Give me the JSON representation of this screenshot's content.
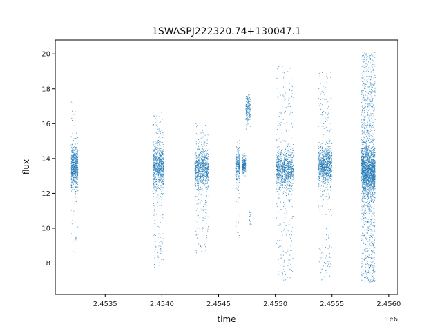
{
  "chart_data": {
    "type": "scatter",
    "title": "1SWASPJ222320.74+130047.1",
    "xlabel": "time",
    "ylabel": "flux",
    "x_offset_label": "1e6",
    "xlim": [
      2.45306,
      2.45608
    ],
    "ylim": [
      6.2,
      20.8
    ],
    "x_ticks": [
      2.4535,
      2.454,
      2.4545,
      2.455,
      2.4555,
      2.456
    ],
    "x_tick_labels": [
      "2.4535",
      "2.4540",
      "2.4545",
      "2.4550",
      "2.4555",
      "2.4560"
    ],
    "y_ticks": [
      8,
      10,
      12,
      14,
      16,
      18,
      20
    ],
    "y_tick_labels": [
      "8",
      "10",
      "12",
      "14",
      "16",
      "18",
      "20"
    ],
    "grid": false,
    "legend": "none",
    "point_color": "#1f77b4",
    "series": [
      {
        "clusters": [
          {
            "x_range": [
              2.4532,
              2.45326
            ],
            "center": 13.5,
            "core_sd": 0.55,
            "low": 8.6,
            "high": 17.5,
            "tail": 0.12,
            "count": 700
          },
          {
            "x_range": [
              2.45392,
              2.45402
            ],
            "center": 13.6,
            "core_sd": 0.6,
            "low": 7.6,
            "high": 16.8,
            "tail": 0.22,
            "count": 900
          },
          {
            "x_range": [
              2.45429,
              2.45441
            ],
            "center": 13.4,
            "core_sd": 0.55,
            "low": 8.4,
            "high": 16.0,
            "tail": 0.2,
            "count": 900
          },
          {
            "x_range": [
              2.45465,
              2.45469
            ],
            "center": 13.6,
            "core_sd": 0.45,
            "low": 9.4,
            "high": 15.1,
            "tail": 0.15,
            "count": 300
          },
          {
            "x_range": [
              2.45471,
              2.45474
            ],
            "center": 13.6,
            "core_sd": 0.3,
            "low": 13.0,
            "high": 14.3,
            "tail": 0.0,
            "count": 200
          },
          {
            "x_range": [
              2.45474,
              2.45476
            ],
            "center": 16.8,
            "core_sd": 0.5,
            "low": 15.6,
            "high": 17.6,
            "tail": 0.0,
            "count": 120
          },
          {
            "x_range": [
              2.45476,
              2.45478
            ],
            "center": 16.8,
            "core_sd": 0.4,
            "low": 15.8,
            "high": 18.0,
            "tail": 0.0,
            "count": 80
          },
          {
            "x_range": [
              2.45477,
              2.45479
            ],
            "center": 10.6,
            "core_sd": 0.25,
            "low": 10.2,
            "high": 11.0,
            "tail": 0.0,
            "count": 20
          },
          {
            "x_range": [
              2.45501,
              2.45516
            ],
            "center": 13.4,
            "core_sd": 0.55,
            "low": 7.0,
            "high": 19.3,
            "tail": 0.25,
            "count": 1100
          },
          {
            "x_range": [
              2.45538,
              2.4555
            ],
            "center": 13.6,
            "core_sd": 0.55,
            "low": 7.0,
            "high": 19.0,
            "tail": 0.22,
            "count": 1000
          },
          {
            "x_range": [
              2.45576,
              2.45588
            ],
            "center": 13.3,
            "core_sd": 0.7,
            "low": 6.9,
            "high": 20.1,
            "tail": 0.45,
            "count": 2600
          }
        ]
      }
    ]
  }
}
